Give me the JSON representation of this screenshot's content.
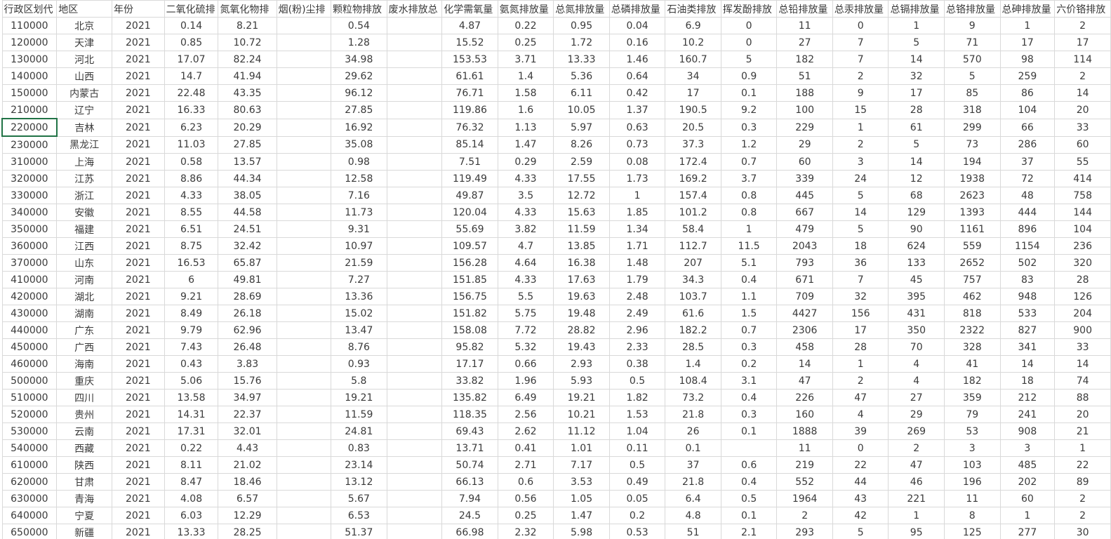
{
  "app": {
    "kind": "spreadsheet-grid",
    "description_visible_only": "grid of cells, no toolbars visible"
  },
  "colors": {
    "background": "#ffffff",
    "grid_line": "#d9d9d9",
    "text": "#3a3a3a",
    "selection_border": "#217346"
  },
  "selection": {
    "data_row_index": 6,
    "col_index": 0,
    "cell_value": "220000"
  },
  "table": {
    "headers": [
      "行政区划代",
      "地区",
      "年份",
      "二氧化硫排",
      "氮氧化物排",
      "烟(粉)尘排",
      "颗粒物排放",
      "废水排放总",
      "化学需氧量",
      "氨氮排放量",
      "总氮排放量",
      "总磷排放量",
      "石油类排放",
      "挥发酚排放",
      "总铅排放量",
      "总汞排放量",
      "总镉排放量",
      "总铬排放量",
      "总砷排放量",
      "六价铬排放"
    ],
    "rows": [
      [
        "110000",
        "北京",
        "2021",
        "0.14",
        "8.21",
        "",
        "0.54",
        "",
        "4.87",
        "0.22",
        "0.95",
        "0.04",
        "6.9",
        "0",
        "11",
        "0",
        "1",
        "9",
        "1",
        "2"
      ],
      [
        "120000",
        "天津",
        "2021",
        "0.85",
        "10.72",
        "",
        "1.28",
        "",
        "15.52",
        "0.25",
        "1.72",
        "0.16",
        "10.2",
        "0",
        "27",
        "7",
        "5",
        "71",
        "17",
        "17"
      ],
      [
        "130000",
        "河北",
        "2021",
        "17.07",
        "82.24",
        "",
        "34.98",
        "",
        "153.53",
        "3.71",
        "13.33",
        "1.46",
        "160.7",
        "5",
        "182",
        "7",
        "14",
        "570",
        "98",
        "114"
      ],
      [
        "140000",
        "山西",
        "2021",
        "14.7",
        "41.94",
        "",
        "29.62",
        "",
        "61.61",
        "1.4",
        "5.36",
        "0.64",
        "34",
        "0.9",
        "51",
        "2",
        "32",
        "5",
        "259",
        "2"
      ],
      [
        "150000",
        "内蒙古",
        "2021",
        "22.48",
        "43.35",
        "",
        "96.12",
        "",
        "76.71",
        "1.58",
        "6.11",
        "0.42",
        "17",
        "0.1",
        "188",
        "9",
        "17",
        "85",
        "86",
        "14"
      ],
      [
        "210000",
        "辽宁",
        "2021",
        "16.33",
        "80.63",
        "",
        "27.85",
        "",
        "119.86",
        "1.6",
        "10.05",
        "1.37",
        "190.5",
        "9.2",
        "100",
        "15",
        "28",
        "318",
        "104",
        "20"
      ],
      [
        "220000",
        "吉林",
        "2021",
        "6.23",
        "20.29",
        "",
        "16.92",
        "",
        "76.32",
        "1.13",
        "5.97",
        "0.63",
        "20.5",
        "0.3",
        "229",
        "1",
        "61",
        "299",
        "66",
        "33"
      ],
      [
        "230000",
        "黑龙江",
        "2021",
        "11.03",
        "27.85",
        "",
        "35.08",
        "",
        "85.14",
        "1.47",
        "8.26",
        "0.73",
        "37.3",
        "1.2",
        "29",
        "2",
        "5",
        "73",
        "286",
        "60"
      ],
      [
        "310000",
        "上海",
        "2021",
        "0.58",
        "13.57",
        "",
        "0.98",
        "",
        "7.51",
        "0.29",
        "2.59",
        "0.08",
        "172.4",
        "0.7",
        "60",
        "3",
        "14",
        "194",
        "37",
        "55"
      ],
      [
        "320000",
        "江苏",
        "2021",
        "8.86",
        "44.34",
        "",
        "12.58",
        "",
        "119.49",
        "4.33",
        "17.55",
        "1.73",
        "169.2",
        "3.7",
        "339",
        "24",
        "12",
        "1938",
        "72",
        "414"
      ],
      [
        "330000",
        "浙江",
        "2021",
        "4.33",
        "38.05",
        "",
        "7.16",
        "",
        "49.87",
        "3.5",
        "12.72",
        "1",
        "157.4",
        "0.8",
        "445",
        "5",
        "68",
        "2623",
        "48",
        "758"
      ],
      [
        "340000",
        "安徽",
        "2021",
        "8.55",
        "44.58",
        "",
        "11.73",
        "",
        "120.04",
        "4.33",
        "15.63",
        "1.85",
        "101.2",
        "0.8",
        "667",
        "14",
        "129",
        "1393",
        "444",
        "144"
      ],
      [
        "350000",
        "福建",
        "2021",
        "6.51",
        "24.51",
        "",
        "9.31",
        "",
        "55.69",
        "3.82",
        "11.59",
        "1.34",
        "58.4",
        "1",
        "479",
        "5",
        "90",
        "1161",
        "896",
        "104"
      ],
      [
        "360000",
        "江西",
        "2021",
        "8.75",
        "32.42",
        "",
        "10.97",
        "",
        "109.57",
        "4.7",
        "13.85",
        "1.71",
        "112.7",
        "11.5",
        "2043",
        "18",
        "624",
        "559",
        "1154",
        "236"
      ],
      [
        "370000",
        "山东",
        "2021",
        "16.53",
        "65.87",
        "",
        "21.59",
        "",
        "156.28",
        "4.64",
        "16.38",
        "1.48",
        "207",
        "5.1",
        "793",
        "36",
        "133",
        "2652",
        "502",
        "320"
      ],
      [
        "410000",
        "河南",
        "2021",
        "6",
        "49.81",
        "",
        "7.27",
        "",
        "151.85",
        "4.33",
        "17.63",
        "1.79",
        "34.3",
        "0.4",
        "671",
        "7",
        "45",
        "757",
        "83",
        "28"
      ],
      [
        "420000",
        "湖北",
        "2021",
        "9.21",
        "28.69",
        "",
        "13.36",
        "",
        "156.75",
        "5.5",
        "19.63",
        "2.48",
        "103.7",
        "1.1",
        "709",
        "32",
        "395",
        "462",
        "948",
        "126"
      ],
      [
        "430000",
        "湖南",
        "2021",
        "8.49",
        "26.18",
        "",
        "15.02",
        "",
        "151.82",
        "5.75",
        "19.48",
        "2.49",
        "61.6",
        "1.5",
        "4427",
        "156",
        "431",
        "818",
        "533",
        "204"
      ],
      [
        "440000",
        "广东",
        "2021",
        "9.79",
        "62.96",
        "",
        "13.47",
        "",
        "158.08",
        "7.72",
        "28.82",
        "2.96",
        "182.2",
        "0.7",
        "2306",
        "17",
        "350",
        "2322",
        "827",
        "900"
      ],
      [
        "450000",
        "广西",
        "2021",
        "7.43",
        "26.48",
        "",
        "8.76",
        "",
        "95.82",
        "5.32",
        "19.43",
        "2.33",
        "28.5",
        "0.3",
        "458",
        "28",
        "70",
        "328",
        "341",
        "33"
      ],
      [
        "460000",
        "海南",
        "2021",
        "0.43",
        "3.83",
        "",
        "0.93",
        "",
        "17.17",
        "0.66",
        "2.93",
        "0.38",
        "1.4",
        "0.2",
        "14",
        "1",
        "4",
        "41",
        "14",
        "14"
      ],
      [
        "500000",
        "重庆",
        "2021",
        "5.06",
        "15.76",
        "",
        "5.8",
        "",
        "33.82",
        "1.96",
        "5.93",
        "0.5",
        "108.4",
        "3.1",
        "47",
        "2",
        "4",
        "182",
        "18",
        "74"
      ],
      [
        "510000",
        "四川",
        "2021",
        "13.58",
        "34.97",
        "",
        "19.21",
        "",
        "135.82",
        "6.49",
        "19.21",
        "1.82",
        "73.2",
        "0.4",
        "226",
        "47",
        "27",
        "359",
        "212",
        "88"
      ],
      [
        "520000",
        "贵州",
        "2021",
        "14.31",
        "22.37",
        "",
        "11.59",
        "",
        "118.35",
        "2.56",
        "10.21",
        "1.53",
        "21.8",
        "0.3",
        "160",
        "4",
        "29",
        "79",
        "241",
        "20"
      ],
      [
        "530000",
        "云南",
        "2021",
        "17.31",
        "32.01",
        "",
        "24.81",
        "",
        "69.43",
        "2.62",
        "11.12",
        "1.04",
        "26",
        "0.1",
        "1888",
        "39",
        "269",
        "53",
        "908",
        "21"
      ],
      [
        "540000",
        "西藏",
        "2021",
        "0.22",
        "4.43",
        "",
        "0.83",
        "",
        "13.71",
        "0.41",
        "1.01",
        "0.11",
        "0.1",
        "",
        "11",
        "0",
        "2",
        "3",
        "3",
        "1"
      ],
      [
        "610000",
        "陕西",
        "2021",
        "8.11",
        "21.02",
        "",
        "23.14",
        "",
        "50.74",
        "2.71",
        "7.17",
        "0.5",
        "37",
        "0.6",
        "219",
        "22",
        "47",
        "103",
        "485",
        "22"
      ],
      [
        "620000",
        "甘肃",
        "2021",
        "8.47",
        "18.46",
        "",
        "13.12",
        "",
        "66.13",
        "0.6",
        "3.53",
        "0.49",
        "21.8",
        "0.4",
        "552",
        "44",
        "46",
        "196",
        "202",
        "89"
      ],
      [
        "630000",
        "青海",
        "2021",
        "4.08",
        "6.57",
        "",
        "5.67",
        "",
        "7.94",
        "0.56",
        "1.05",
        "0.05",
        "6.4",
        "0.5",
        "1964",
        "43",
        "221",
        "11",
        "60",
        "2"
      ],
      [
        "640000",
        "宁夏",
        "2021",
        "6.03",
        "12.29",
        "",
        "6.53",
        "",
        "24.5",
        "0.25",
        "1.47",
        "0.2",
        "4.8",
        "0.1",
        "2",
        "42",
        "1",
        "8",
        "1",
        "2"
      ],
      [
        "650000",
        "新疆",
        "2021",
        "13.33",
        "28.25",
        "",
        "51.37",
        "",
        "66.98",
        "2.32",
        "5.98",
        "0.53",
        "51",
        "2.1",
        "293",
        "5",
        "95",
        "125",
        "277",
        "30"
      ]
    ]
  }
}
